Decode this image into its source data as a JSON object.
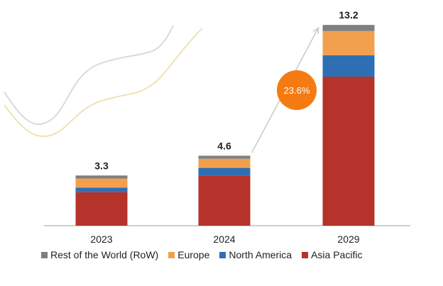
{
  "chart_data": {
    "type": "bar",
    "stacked": true,
    "categories": [
      "2023",
      "2024",
      "2029"
    ],
    "totals": [
      "3.3",
      "4.6",
      "13.2"
    ],
    "series": [
      {
        "name": "Asia Pacific",
        "color": "#b5332a",
        "values": [
          2.2,
          3.3,
          9.8
        ]
      },
      {
        "name": "North America",
        "color": "#2e6fb4",
        "values": [
          0.3,
          0.5,
          1.4
        ]
      },
      {
        "name": "Europe",
        "color": "#f2a04e",
        "values": [
          0.6,
          0.6,
          1.6
        ]
      },
      {
        "name": "Rest of the World (RoW)",
        "color": "#7f7f7f",
        "values": [
          0.2,
          0.2,
          0.4
        ]
      }
    ],
    "legend_order": [
      3,
      2,
      1,
      0
    ],
    "legend_position": "bottom",
    "ylim": [
      0,
      14
    ],
    "grid": false,
    "annotation": {
      "text": "23.6%",
      "color": "#f47b12",
      "from_category": 1,
      "to_category": 2
    }
  }
}
